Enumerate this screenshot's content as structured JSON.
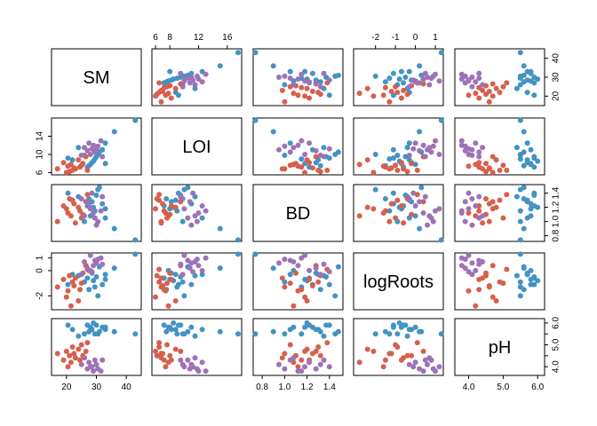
{
  "chart_data": {
    "type": "scatter",
    "variables": [
      {
        "name": "SM",
        "range": [
          15,
          45
        ],
        "ticks": [
          20,
          30,
          40
        ],
        "tick_labels": [
          "20",
          "30",
          "40"
        ]
      },
      {
        "name": "LOI",
        "range": [
          5.5,
          18
        ],
        "ticks": [
          6,
          8,
          12,
          16
        ],
        "tick_labels": [
          "6",
          "8",
          "12",
          "16"
        ],
        "left_tick_labels": [
          "6",
          "10",
          "14"
        ],
        "left_ticks": [
          6,
          10,
          14
        ]
      },
      {
        "name": "BD",
        "range": [
          0.72,
          1.52
        ],
        "ticks": [
          0.8,
          1.0,
          1.2,
          1.4
        ],
        "tick_labels": [
          "0.8",
          "1.0",
          "1.2",
          "1.4"
        ],
        "right_ticks": [
          0.8,
          1.0,
          1.2,
          1.4
        ],
        "right_tick_labels": [
          "0.8",
          "1.0",
          "1.2",
          "1.4"
        ]
      },
      {
        "name": "logRoots",
        "range": [
          -3.1,
          1.4
        ],
        "ticks": [
          -2,
          -1,
          0,
          1
        ],
        "tick_labels": [
          "-2",
          "-1",
          "0",
          "1"
        ],
        "left_ticks": [
          -2,
          0,
          1
        ],
        "left_tick_labels": [
          "-2",
          "0",
          "1"
        ]
      },
      {
        "name": "pH",
        "range": [
          3.6,
          6.2
        ],
        "ticks": [
          4.0,
          5.0,
          6.0
        ],
        "tick_labels": [
          "4.0",
          "5.0",
          "6.0"
        ],
        "right_ticks": [
          4.0,
          4.5,
          5.0,
          5.5,
          6.0
        ],
        "right_tick_labels": [
          "4.0",
          "",
          "5.0",
          "",
          "6.0"
        ]
      }
    ],
    "tick_axes": {
      "bottom": [
        0,
        2,
        4
      ],
      "top": [
        1,
        3
      ],
      "left": [
        1,
        3
      ],
      "right": [
        0,
        2,
        4
      ]
    },
    "groups": [
      {
        "color": "#4393c3"
      },
      {
        "color": "#d6604d"
      },
      {
        "color": "#9e72b7"
      }
    ],
    "observations": [
      {
        "g": 0,
        "SM": 43.0,
        "LOI": 17.5,
        "BD": 0.74,
        "logRoots": 1.3,
        "pH": 5.5
      },
      {
        "g": 0,
        "SM": 36.0,
        "LOI": 15.0,
        "BD": 0.9,
        "logRoots": 0.2,
        "pH": 5.6
      },
      {
        "g": 0,
        "SM": 33.0,
        "LOI": 12.5,
        "BD": 1.05,
        "logRoots": -0.3,
        "pH": 5.7
      },
      {
        "g": 0,
        "SM": 32.0,
        "LOI": 11.0,
        "BD": 1.25,
        "logRoots": -1.1,
        "pH": 5.8
      },
      {
        "g": 0,
        "SM": 31.0,
        "LOI": 10.5,
        "BD": 1.48,
        "logRoots": 0.3,
        "pH": 5.6
      },
      {
        "g": 0,
        "SM": 30.0,
        "LOI": 9.5,
        "BD": 1.37,
        "logRoots": -0.5,
        "pH": 5.9
      },
      {
        "g": 0,
        "SM": 29.5,
        "LOI": 9.0,
        "BD": 1.15,
        "logRoots": -1.3,
        "pH": 5.5
      },
      {
        "g": 0,
        "SM": 29.0,
        "LOI": 8.5,
        "BD": 1.2,
        "logRoots": -0.8,
        "pH": 6.0
      },
      {
        "g": 0,
        "SM": 28.5,
        "LOI": 8.2,
        "BD": 1.28,
        "logRoots": -0.2,
        "pH": 5.7
      },
      {
        "g": 0,
        "SM": 28.0,
        "LOI": 7.8,
        "BD": 1.08,
        "logRoots": 0.0,
        "pH": 5.8
      },
      {
        "g": 0,
        "SM": 27.5,
        "LOI": 7.5,
        "BD": 1.32,
        "logRoots": -1.5,
        "pH": 5.6
      },
      {
        "g": 0,
        "SM": 27.0,
        "LOI": 7.2,
        "BD": 1.22,
        "logRoots": -0.6,
        "pH": 5.9
      },
      {
        "g": 0,
        "SM": 26.0,
        "LOI": 9.8,
        "BD": 1.0,
        "logRoots": -0.9,
        "pH": 5.5
      },
      {
        "g": 0,
        "SM": 24.0,
        "LOI": 11.5,
        "BD": 1.35,
        "logRoots": -0.4,
        "pH": 5.4
      },
      {
        "g": 0,
        "SM": 22.0,
        "LOI": 8.8,
        "BD": 1.3,
        "logRoots": -0.3,
        "pH": 5.7
      },
      {
        "g": 0,
        "SM": 30.5,
        "LOI": 10.0,
        "BD": 1.45,
        "logRoots": -2.0,
        "pH": 5.5
      },
      {
        "g": 0,
        "SM": 33.0,
        "LOI": 8.0,
        "BD": 1.18,
        "logRoots": -0.7,
        "pH": 5.8
      },
      {
        "g": 0,
        "SM": 20.5,
        "LOI": 9.2,
        "BD": 1.4,
        "logRoots": -1.1,
        "pH": 5.9
      },
      {
        "g": 1,
        "SM": 26.5,
        "LOI": 9.5,
        "BD": 1.28,
        "logRoots": 0.4,
        "pH": 4.7
      },
      {
        "g": 1,
        "SM": 25.5,
        "LOI": 8.0,
        "BD": 1.1,
        "logRoots": -0.2,
        "pH": 4.5
      },
      {
        "g": 1,
        "SM": 25.0,
        "LOI": 7.6,
        "BD": 1.05,
        "logRoots": -1.0,
        "pH": 5.0
      },
      {
        "g": 1,
        "SM": 24.5,
        "LOI": 7.2,
        "BD": 1.15,
        "logRoots": -1.5,
        "pH": 4.3
      },
      {
        "g": 1,
        "SM": 24.0,
        "LOI": 8.8,
        "BD": 1.2,
        "logRoots": -2.4,
        "pH": 4.8
      },
      {
        "g": 1,
        "SM": 23.0,
        "LOI": 6.8,
        "BD": 0.98,
        "logRoots": -0.6,
        "pH": 4.4
      },
      {
        "g": 1,
        "SM": 22.5,
        "LOI": 7.0,
        "BD": 1.25,
        "logRoots": -1.2,
        "pH": 4.6
      },
      {
        "g": 1,
        "SM": 22.0,
        "LOI": 6.5,
        "BD": 1.3,
        "logRoots": -0.9,
        "pH": 4.9
      },
      {
        "g": 1,
        "SM": 21.5,
        "LOI": 7.8,
        "BD": 1.08,
        "logRoots": -2.8,
        "pH": 4.2
      },
      {
        "g": 1,
        "SM": 21.0,
        "LOI": 6.2,
        "BD": 1.32,
        "logRoots": -0.4,
        "pH": 4.5
      },
      {
        "g": 1,
        "SM": 20.5,
        "LOI": 7.4,
        "BD": 1.12,
        "logRoots": -1.6,
        "pH": 4.0
      },
      {
        "g": 1,
        "SM": 20.0,
        "LOI": 6.0,
        "BD": 1.18,
        "logRoots": -2.1,
        "pH": 4.7
      },
      {
        "g": 1,
        "SM": 19.0,
        "LOI": 8.2,
        "BD": 1.22,
        "logRoots": -0.7,
        "pH": 4.3
      },
      {
        "g": 1,
        "SM": 17.0,
        "LOI": 6.8,
        "BD": 1.0,
        "logRoots": -1.3,
        "pH": 4.6
      },
      {
        "g": 1,
        "SM": 27.0,
        "LOI": 6.5,
        "BD": 1.38,
        "logRoots": 0.1,
        "pH": 5.1
      },
      {
        "g": 2,
        "SM": 30.5,
        "LOI": 11.8,
        "BD": 1.0,
        "logRoots": 0.9,
        "pH": 3.9
      },
      {
        "g": 2,
        "SM": 30.0,
        "LOI": 11.0,
        "BD": 0.95,
        "logRoots": 0.6,
        "pH": 4.1
      },
      {
        "g": 2,
        "SM": 29.5,
        "LOI": 10.5,
        "BD": 1.05,
        "logRoots": 0.8,
        "pH": 4.3
      },
      {
        "g": 2,
        "SM": 29.0,
        "LOI": 12.0,
        "BD": 1.12,
        "logRoots": 0.4,
        "pH": 3.8
      },
      {
        "g": 2,
        "SM": 28.0,
        "LOI": 10.0,
        "BD": 1.18,
        "logRoots": 1.2,
        "pH": 4.0
      },
      {
        "g": 2,
        "SM": 27.5,
        "LOI": 12.5,
        "BD": 1.22,
        "logRoots": 0.0,
        "pH": 4.2
      },
      {
        "g": 2,
        "SM": 27.0,
        "LOI": 10.8,
        "BD": 1.28,
        "logRoots": 0.2,
        "pH": 3.9
      },
      {
        "g": 2,
        "SM": 26.0,
        "LOI": 11.5,
        "BD": 1.08,
        "logRoots": 0.7,
        "pH": 4.4
      },
      {
        "g": 2,
        "SM": 25.0,
        "LOI": 9.8,
        "BD": 1.32,
        "logRoots": -0.3,
        "pH": 4.1
      },
      {
        "g": 2,
        "SM": 31.5,
        "LOI": 13.0,
        "BD": 1.15,
        "logRoots": 1.0,
        "pH": 3.8
      },
      {
        "g": 2,
        "SM": 32.0,
        "LOI": 9.5,
        "BD": 1.35,
        "logRoots": 0.5,
        "pH": 4.3
      },
      {
        "g": 2,
        "SM": 28.5,
        "LOI": 11.2,
        "BD": 1.4,
        "logRoots": -0.1,
        "pH": 4.0
      }
    ]
  }
}
